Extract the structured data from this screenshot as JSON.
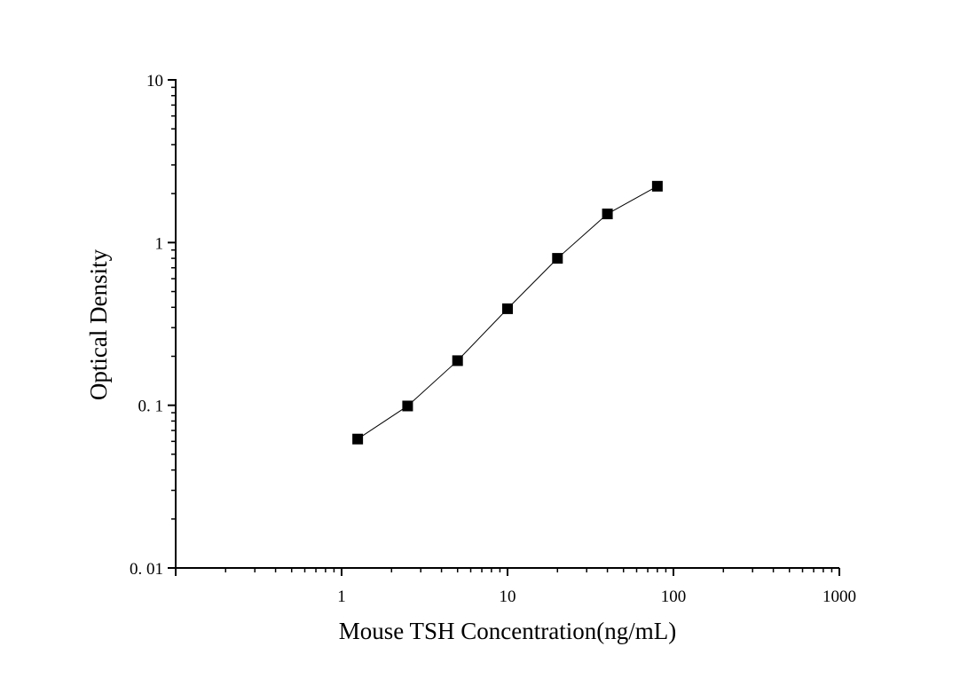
{
  "chart_data": {
    "type": "line",
    "title": "",
    "xlabel": "Mouse TSH Concentration(ng/mL)",
    "ylabel": "Optical Density",
    "x_scale": "log",
    "y_scale": "log",
    "xlim": [
      0.1,
      1000
    ],
    "ylim": [
      0.01,
      10
    ],
    "x_ticks": [
      {
        "value": 1,
        "label": "1"
      },
      {
        "value": 10,
        "label": "10"
      },
      {
        "value": 100,
        "label": "100"
      },
      {
        "value": 1000,
        "label": "1000"
      }
    ],
    "y_ticks": [
      {
        "value": 0.01,
        "label": "0. 01"
      },
      {
        "value": 0.1,
        "label": "0. 1"
      },
      {
        "value": 1,
        "label": "1"
      },
      {
        "value": 10,
        "label": "10"
      }
    ],
    "grid": false,
    "legend": "none",
    "marker": "square",
    "series_color": "#000000",
    "series": [
      {
        "x": [
          1.25,
          2.5,
          5,
          10,
          20,
          40,
          80
        ],
        "y": [
          0.062,
          0.099,
          0.188,
          0.392,
          0.8,
          1.5,
          2.22
        ]
      }
    ]
  }
}
